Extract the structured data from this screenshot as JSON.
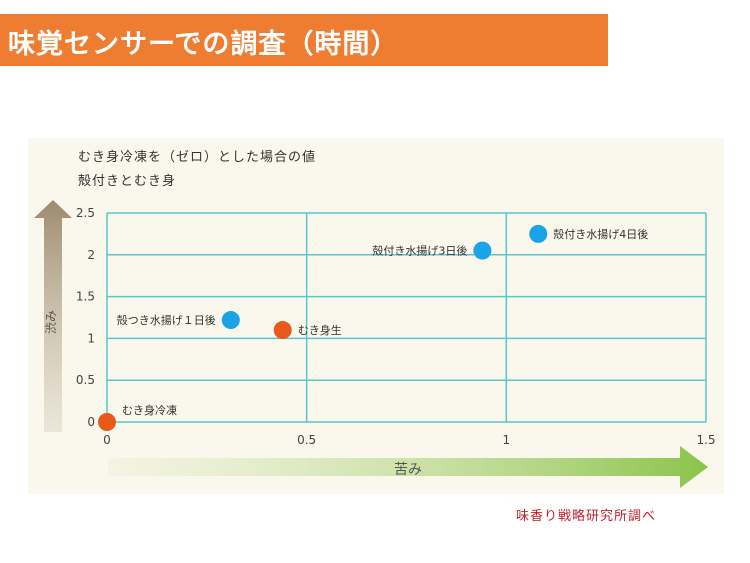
{
  "header": {
    "title": "味覚センサーでの調査（時間）"
  },
  "subtitle_line1": "むき身冷凍を（ゼロ）とした場合の値",
  "subtitle_line2": "殻付きとむき身",
  "credit": "味香り戦略研究所調べ",
  "colors": {
    "header_bg": "#ee7d32",
    "blue": "#1aa3e8",
    "orange": "#e85a1c",
    "grid": "#5cc6cc"
  },
  "chart_data": {
    "type": "scatter",
    "xlabel": "苦み",
    "ylabel": "渋み",
    "xlim": [
      0,
      1.5
    ],
    "ylim": [
      0,
      2.5
    ],
    "x_ticks": [
      "0",
      "0.5",
      "1",
      "1.5"
    ],
    "y_ticks": [
      "0",
      "0.5",
      "1",
      "1.5",
      "2",
      "2.5"
    ],
    "grid": true,
    "points": [
      {
        "label": "むき身冷凍",
        "x": 0.0,
        "y": 0.0,
        "color": "#e85a1c",
        "label_side": "right"
      },
      {
        "label": "むき身生",
        "x": 0.44,
        "y": 1.1,
        "color": "#e85a1c",
        "label_side": "right"
      },
      {
        "label": "殻つき水揚げ１日後",
        "x": 0.31,
        "y": 1.22,
        "color": "#1aa3e8",
        "label_side": "left"
      },
      {
        "label": "殻付き水揚げ3日後",
        "x": 0.94,
        "y": 2.05,
        "color": "#1aa3e8",
        "label_side": "left"
      },
      {
        "label": "殻付き水揚げ4日後",
        "x": 1.08,
        "y": 2.25,
        "color": "#1aa3e8",
        "label_side": "right"
      }
    ]
  }
}
